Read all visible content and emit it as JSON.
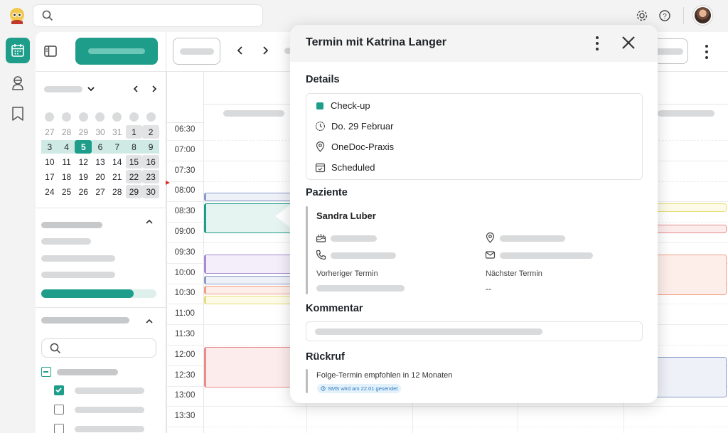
{
  "search": {
    "placeholder": ""
  },
  "mini_calendar": {
    "days": [
      {
        "d": "27",
        "s": "muted"
      },
      {
        "d": "28",
        "s": "muted"
      },
      {
        "d": "29",
        "s": "muted"
      },
      {
        "d": "30",
        "s": "muted"
      },
      {
        "d": "31",
        "s": "muted"
      },
      {
        "d": "1",
        "s": "gray"
      },
      {
        "d": "2",
        "s": "gray"
      },
      {
        "d": "3",
        "s": "week"
      },
      {
        "d": "4",
        "s": "week"
      },
      {
        "d": "5",
        "s": "selected"
      },
      {
        "d": "6",
        "s": "week"
      },
      {
        "d": "7",
        "s": "week"
      },
      {
        "d": "8",
        "s": "week"
      },
      {
        "d": "9",
        "s": "week"
      },
      {
        "d": "10",
        "s": ""
      },
      {
        "d": "11",
        "s": ""
      },
      {
        "d": "12",
        "s": ""
      },
      {
        "d": "13",
        "s": ""
      },
      {
        "d": "14",
        "s": ""
      },
      {
        "d": "15",
        "s": "gray"
      },
      {
        "d": "16",
        "s": "gray"
      },
      {
        "d": "17",
        "s": ""
      },
      {
        "d": "18",
        "s": ""
      },
      {
        "d": "19",
        "s": ""
      },
      {
        "d": "20",
        "s": ""
      },
      {
        "d": "21",
        "s": ""
      },
      {
        "d": "22",
        "s": "gray"
      },
      {
        "d": "23",
        "s": "gray"
      },
      {
        "d": "24",
        "s": ""
      },
      {
        "d": "25",
        "s": ""
      },
      {
        "d": "26",
        "s": ""
      },
      {
        "d": "27",
        "s": ""
      },
      {
        "d": "28",
        "s": ""
      },
      {
        "d": "29",
        "s": "gray"
      },
      {
        "d": "30",
        "s": "gray"
      }
    ]
  },
  "times": [
    "06:30",
    "07:00",
    "07:30",
    "08:00",
    "08:30",
    "09:00",
    "09:30",
    "10:00",
    "10:30",
    "11:00",
    "11:30",
    "12:00",
    "12:30",
    "13:00",
    "13:30"
  ],
  "popup": {
    "title": "Termin mit Katrina Langer",
    "details_heading": "Details",
    "type": "Check-up",
    "type_color": "#1e9e8a",
    "date": "Do. 29 Februar",
    "location": "OneDoc-Praxis",
    "status": "Scheduled",
    "patient_heading": "Paziente",
    "patient_name": "Sandra Luber",
    "prev_label": "Vorheriger Termin",
    "next_label": "Nächster Termin",
    "next_value": "--",
    "comment_heading": "Kommentar",
    "callback_heading": "Rückruf",
    "callback_text": "Folge-Termin empfohlen in 12 Monaten",
    "sms_badge": "SMS wird am 22.01 gesendet"
  },
  "colors": {
    "accent": "#1e9e8a"
  }
}
